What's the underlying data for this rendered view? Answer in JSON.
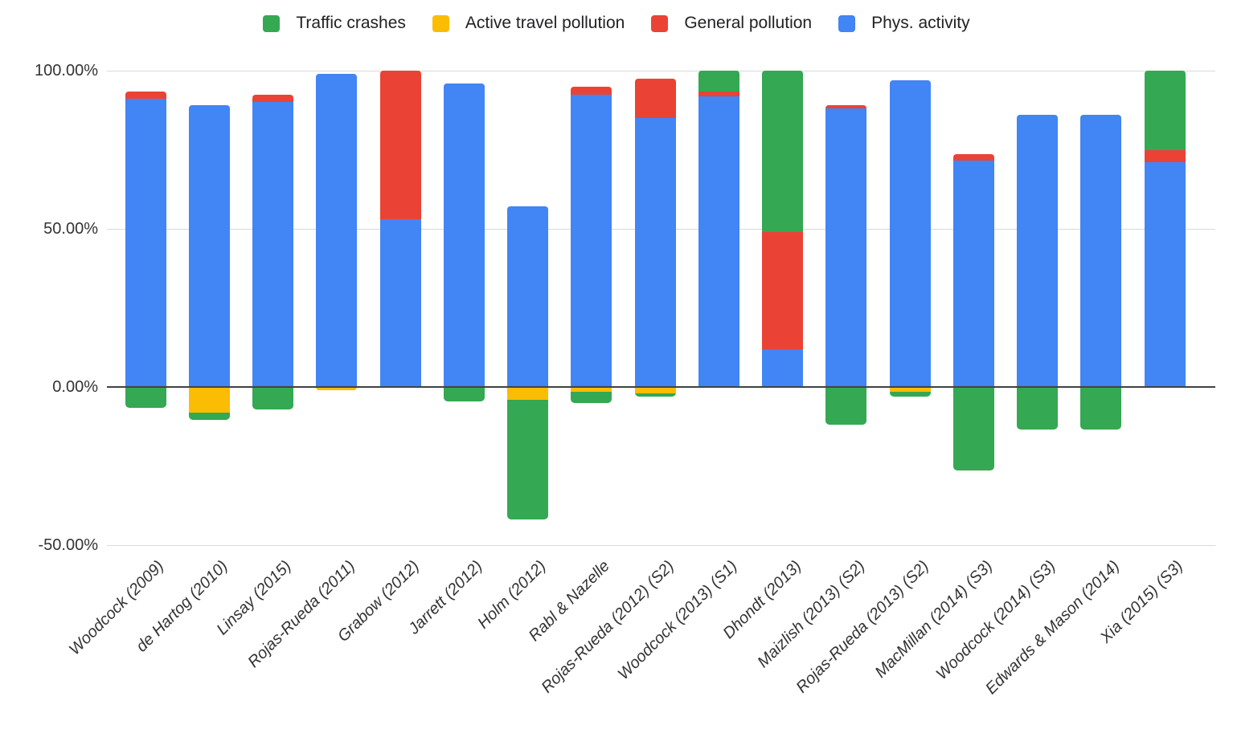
{
  "chart_data": {
    "type": "bar",
    "stacked": true,
    "orientation": "vertical",
    "title": "",
    "xlabel": "",
    "ylabel": "",
    "value_format": "percent",
    "ylim": [
      -50,
      100
    ],
    "grid": true,
    "legend_position": "top",
    "y_ticks": [
      {
        "value": 100,
        "label": "100.00%"
      },
      {
        "value": 50,
        "label": "50.00%"
      },
      {
        "value": 0,
        "label": "0.00%"
      },
      {
        "value": -50,
        "label": "-50.00%"
      }
    ],
    "categories": [
      "Woodcock (2009)",
      "de Hartog (2010)",
      "Linsay (2015)",
      "Rojas-Rueda (2011)",
      "Grabow (2012)",
      "Jarrett (2012)",
      "Holm (2012)",
      "Rabl & Nazelle",
      "Rojas-Rueda (2012) (S2)",
      "Woodcock (2013) (S1)",
      "Dhondt (2013)",
      "Maizlish (2013) (S2)",
      "Rojas-Rueda (2013) (S2)",
      "MacMillan (2014) (S3)",
      "Woodcock (2014) (S3)",
      "Edwards & Mason (2014)",
      "Xia (2015) (S3)"
    ],
    "series": [
      {
        "name": "Traffic crashes",
        "color": "#34A853",
        "values": [
          -6.5,
          -2.5,
          -7,
          0,
          0,
          -4.5,
          -38,
          -3.5,
          -1,
          6.5,
          51,
          -12,
          -1.5,
          -26.5,
          -13.5,
          -13.5,
          25
        ]
      },
      {
        "name": "Active travel pollution",
        "color": "#FBBC04",
        "values": [
          0,
          -8,
          0,
          -1,
          0,
          0,
          -4,
          -1.5,
          -2,
          0,
          0,
          0,
          -1.5,
          0,
          0,
          0,
          0
        ]
      },
      {
        "name": "General pollution",
        "color": "#EA4335",
        "values": [
          2.5,
          0,
          2.5,
          0,
          47,
          0,
          0,
          2.5,
          12.5,
          1.5,
          37,
          1,
          0,
          2,
          0,
          0,
          4
        ]
      },
      {
        "name": "Phys. activity",
        "color": "#4285F4",
        "values": [
          91,
          89,
          90,
          99,
          53,
          96,
          57,
          92.5,
          85,
          92,
          12,
          88,
          97,
          71.5,
          86,
          86,
          71
        ]
      }
    ],
    "stack_order_positive": [
      "Phys. activity",
      "General pollution",
      "Traffic crashes"
    ],
    "stack_order_negative": [
      "Active travel pollution",
      "Traffic crashes"
    ]
  }
}
